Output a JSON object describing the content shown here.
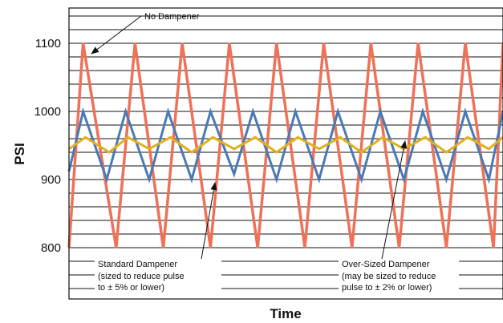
{
  "chart_data": {
    "type": "line",
    "xlabel": "Time",
    "ylabel": "PSI",
    "ylim": [
      800,
      1100
    ],
    "yticks": [
      800,
      900,
      1000,
      1100
    ],
    "grid": true,
    "series": [
      {
        "color": "#ee7158",
        "x": [
          0.0,
          0.3,
          1.0,
          1.4,
          2.0,
          2.4,
          3.0,
          3.4,
          4.0,
          4.4,
          5.0,
          5.4,
          6.0,
          6.4,
          7.0,
          7.4,
          8.0,
          8.4,
          9.0,
          9.2
        ],
        "y": [
          800,
          1100,
          800,
          1100,
          800,
          1100,
          800,
          1100,
          800,
          1100,
          800,
          1100,
          800,
          1100,
          800,
          1100,
          800,
          1100,
          800,
          1100
        ]
      },
      {
        "color": "#4a7ab5",
        "x": [
          0.0,
          0.3,
          0.8,
          1.2,
          1.7,
          2.1,
          2.6,
          3.0,
          3.5,
          3.9,
          4.4,
          4.8,
          5.3,
          5.7,
          6.2,
          6.6,
          7.1,
          7.5,
          8.0,
          8.4,
          8.9,
          9.2
        ],
        "y": [
          912,
          1000,
          900,
          1000,
          900,
          1000,
          900,
          1000,
          908,
          1000,
          900,
          1000,
          900,
          1000,
          900,
          1000,
          900,
          1000,
          900,
          1000,
          900,
          1000
        ]
      },
      {
        "color": "#e0b020",
        "x": [
          0.0,
          0.35,
          0.85,
          1.25,
          1.7,
          2.15,
          2.6,
          3.05,
          3.5,
          3.95,
          4.4,
          4.85,
          5.3,
          5.75,
          6.2,
          6.65,
          7.1,
          7.55,
          8.0,
          8.45,
          8.9,
          9.2
        ],
        "y": [
          945,
          962,
          940,
          962,
          945,
          962,
          940,
          962,
          945,
          962,
          940,
          962,
          945,
          962,
          940,
          962,
          945,
          962,
          940,
          962,
          945,
          962
        ]
      }
    ],
    "annotations": [
      {
        "lines": [
          "No Dampener"
        ]
      },
      {
        "lines": [
          "Standard Dampener",
          "(sized to reduce pulse",
          "to ± 5% or lower)"
        ]
      },
      {
        "lines": [
          "Over-Sized Dampener",
          "(may be sized to reduce",
          "pulse to ± 2% or lower)"
        ]
      }
    ]
  }
}
